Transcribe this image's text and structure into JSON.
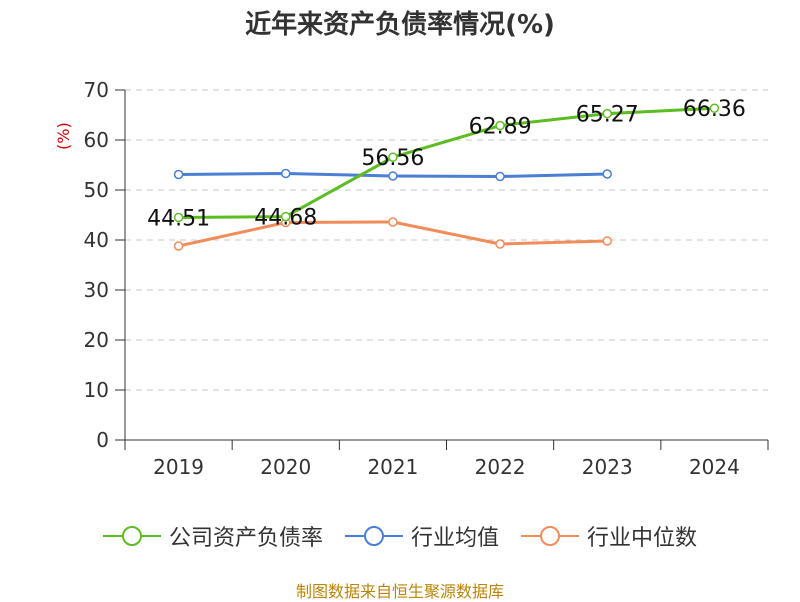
{
  "title": "近年来资产负债率情况(%)",
  "source_text": "制图数据来自恒生聚源数据库",
  "chart_data": {
    "type": "line",
    "title": "近年来资产负债率情况(%)",
    "ylabel": "(%)",
    "xlabel": "",
    "categories": [
      "2019",
      "2020",
      "2021",
      "2022",
      "2023",
      "2024"
    ],
    "ylim": [
      0,
      70
    ],
    "yticks": [
      0,
      10,
      20,
      30,
      40,
      50,
      60,
      70
    ],
    "grid": true,
    "legend_position": "bottom",
    "series": [
      {
        "name": "公司资产负债率",
        "color": "#5cbd22",
        "values": [
          44.51,
          44.68,
          56.56,
          62.89,
          65.27,
          66.36
        ],
        "labels": [
          "44.51",
          "44.68",
          "56.56",
          "62.89",
          "65.27",
          "66.36"
        ]
      },
      {
        "name": "行业均值",
        "color": "#4a7fd4",
        "values": [
          53.1,
          53.3,
          52.8,
          52.7,
          53.2,
          null
        ]
      },
      {
        "name": "行业中位数",
        "color": "#f28c5a",
        "values": [
          38.8,
          43.5,
          43.6,
          39.2,
          39.8,
          null
        ]
      }
    ]
  }
}
